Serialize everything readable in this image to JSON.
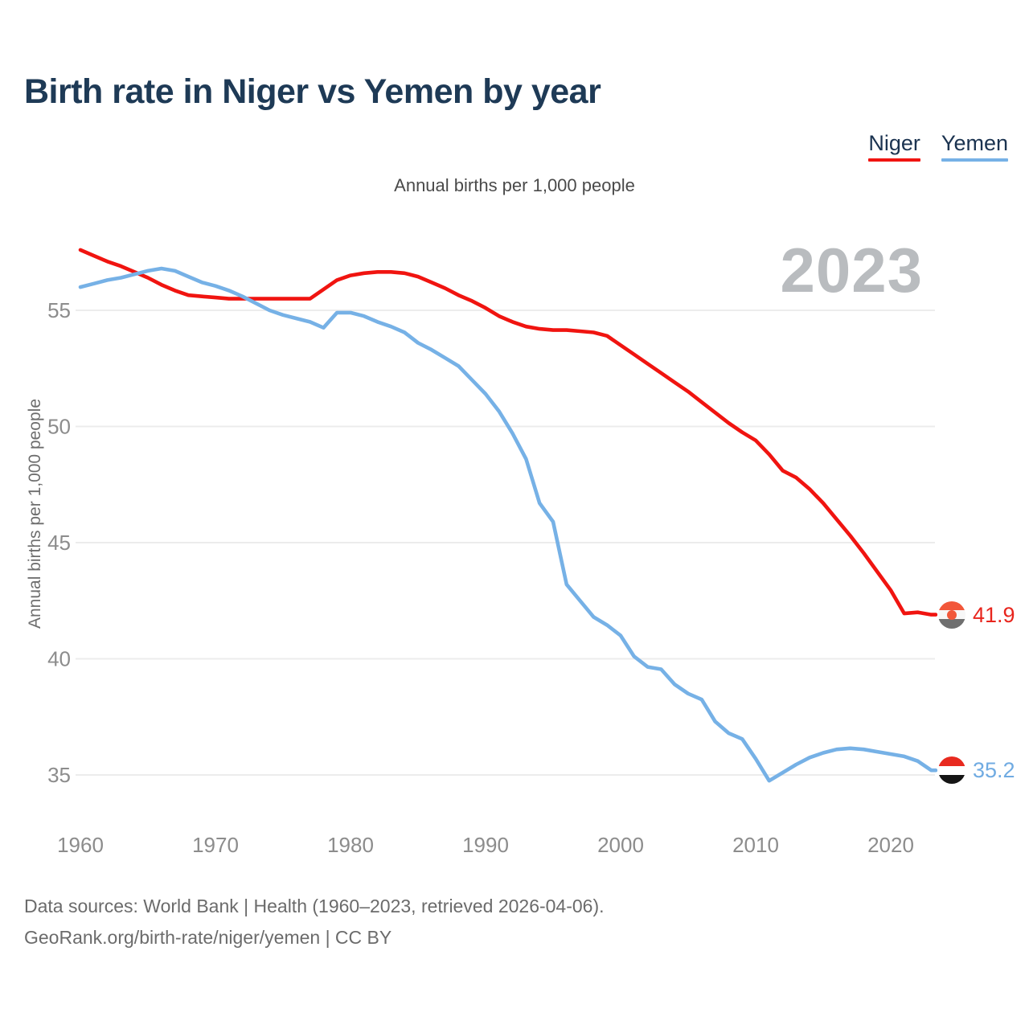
{
  "page": {
    "title": "Birth rate in Niger vs Yemen by year",
    "subtitle": "Annual births per 1,000 people",
    "watermark": "2023",
    "footer_line1": "Data sources: World Bank | Health (1960–2023, retrieved 2026-04-06).",
    "footer_line2": "GeoRank.org/birth-rate/niger/yemen | CC BY"
  },
  "legend": [
    {
      "label": "Niger",
      "color": "#f01410"
    },
    {
      "label": "Yemen",
      "color": "#76b1e6"
    }
  ],
  "colors": {
    "title": "#1e3a56",
    "axis_text": "#8c8c8c",
    "gridline": "#ececec",
    "watermark": "#b9bcbf",
    "niger_line": "#f01410",
    "yemen_line": "#76b1e6",
    "niger_value_label": "#e8251d",
    "yemen_value_label": "#70abe2"
  },
  "flags": {
    "niger": {
      "bands": [
        "#f2573a",
        "#f7f7f7",
        "#6f6f6f"
      ],
      "dot": "#f2583a"
    },
    "yemen": {
      "bands": [
        "#e82a1f",
        "#ffffff",
        "#151515"
      ]
    }
  },
  "chart_data": {
    "type": "line",
    "title": "Birth rate in Niger vs Yemen by year",
    "subtitle": "Annual births per 1,000 people",
    "xlabel": "",
    "ylabel": "Annual births per 1,000 people",
    "x_range": [
      1960,
      2023
    ],
    "ylim": [
      33.5,
      58.5
    ],
    "x_ticks": [
      1960,
      1970,
      1980,
      1990,
      2000,
      2010,
      2020
    ],
    "y_ticks": [
      55,
      50,
      45,
      40,
      35
    ],
    "grid": "horizontal",
    "legend_position": "top-right",
    "x": [
      1960,
      1961,
      1962,
      1963,
      1964,
      1965,
      1966,
      1967,
      1968,
      1969,
      1970,
      1971,
      1972,
      1973,
      1974,
      1975,
      1976,
      1977,
      1978,
      1979,
      1980,
      1981,
      1982,
      1983,
      1984,
      1985,
      1986,
      1987,
      1988,
      1989,
      1990,
      1991,
      1992,
      1993,
      1994,
      1995,
      1996,
      1997,
      1998,
      1999,
      2000,
      2001,
      2002,
      2003,
      2004,
      2005,
      2006,
      2007,
      2008,
      2009,
      2010,
      2011,
      2012,
      2013,
      2014,
      2015,
      2016,
      2017,
      2018,
      2019,
      2020,
      2021,
      2022,
      2023
    ],
    "series": [
      {
        "name": "Niger",
        "color": "#f01410",
        "end_label": "41.9",
        "values": [
          57.6,
          57.35,
          57.1,
          56.9,
          56.65,
          56.4,
          56.1,
          55.85,
          55.65,
          55.6,
          55.55,
          55.5,
          55.5,
          55.5,
          55.5,
          55.5,
          55.5,
          55.5,
          55.9,
          56.3,
          56.5,
          56.6,
          56.65,
          56.65,
          56.6,
          56.45,
          56.2,
          55.95,
          55.65,
          55.4,
          55.1,
          54.75,
          54.5,
          54.3,
          54.2,
          54.15,
          54.15,
          54.1,
          54.05,
          53.9,
          53.5,
          53.1,
          52.7,
          52.3,
          51.9,
          51.5,
          51.05,
          50.6,
          50.15,
          49.75,
          49.4,
          48.8,
          48.1,
          47.8,
          47.3,
          46.7,
          46.0,
          45.3,
          44.55,
          43.75,
          42.95,
          41.95,
          42.0,
          41.9
        ]
      },
      {
        "name": "Yemen",
        "color": "#76b1e6",
        "end_label": "35.2",
        "values": [
          56.0,
          56.15,
          56.3,
          56.4,
          56.55,
          56.7,
          56.8,
          56.7,
          56.45,
          56.2,
          56.05,
          55.85,
          55.6,
          55.3,
          55.0,
          54.8,
          54.65,
          54.5,
          54.25,
          54.9,
          54.9,
          54.75,
          54.5,
          54.3,
          54.05,
          53.6,
          53.3,
          52.95,
          52.6,
          52.0,
          51.4,
          50.65,
          49.7,
          48.6,
          46.7,
          45.9,
          43.2,
          42.5,
          41.8,
          41.45,
          41.0,
          40.1,
          39.65,
          39.55,
          38.9,
          38.5,
          38.25,
          37.3,
          36.8,
          36.55,
          35.7,
          34.75,
          35.1,
          35.45,
          35.75,
          35.95,
          36.1,
          36.15,
          36.1,
          36.0,
          35.9,
          35.8,
          35.6,
          35.2
        ]
      }
    ]
  }
}
